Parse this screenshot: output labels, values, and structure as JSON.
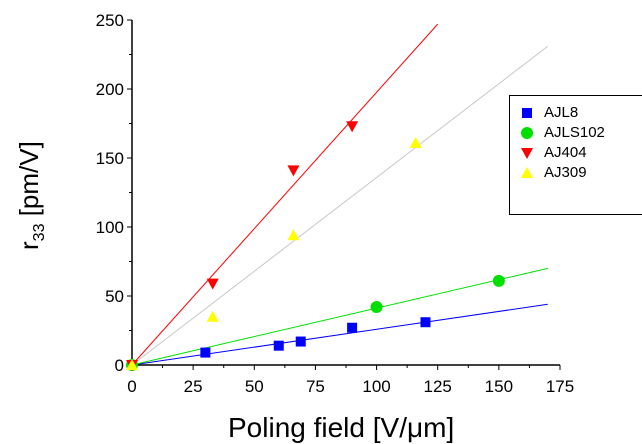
{
  "chart_data": {
    "type": "scatter",
    "title": "",
    "xlabel": "Poling field [V/μm]",
    "ylabel_main": "r",
    "ylabel_sub": "33",
    "ylabel_unit": " [pm/V]",
    "xlim": [
      0,
      175
    ],
    "ylim": [
      0,
      250
    ],
    "xticks": [
      "0",
      "25",
      "50",
      "75",
      "100",
      "125",
      "150",
      "175"
    ],
    "yticks": [
      "0",
      "50",
      "100",
      "150",
      "200",
      "250"
    ],
    "grid": false,
    "legend_placement": "right",
    "series": [
      {
        "name": "AJL8",
        "marker": "square",
        "color": "#0000ff",
        "x": [
          0,
          30,
          60,
          69,
          90,
          120
        ],
        "y": [
          0,
          9,
          14,
          17,
          27,
          31
        ],
        "fit": [
          [
            0,
            0
          ],
          [
            170,
            44
          ]
        ]
      },
      {
        "name": "AJLS102",
        "marker": "circle",
        "color": "#00e000",
        "x": [
          0,
          100,
          150
        ],
        "y": [
          0,
          42,
          61
        ],
        "fit": [
          [
            0,
            0
          ],
          [
            170,
            70
          ]
        ]
      },
      {
        "name": "AJ404",
        "marker": "triangle-down",
        "color": "#ff0000",
        "x": [
          0,
          33,
          66,
          90
        ],
        "y": [
          0,
          59,
          141,
          173
        ],
        "fit": [
          [
            0,
            0
          ],
          [
            125,
            247
          ]
        ]
      },
      {
        "name": "AJ309",
        "marker": "triangle-up",
        "color": "#ffff00",
        "x": [
          0,
          33,
          66,
          116
        ],
        "y": [
          0,
          35,
          94,
          161
        ],
        "fit": [
          [
            0,
            0
          ],
          [
            170,
            231
          ]
        ],
        "fit_color": "#c8c8c8"
      }
    ]
  }
}
